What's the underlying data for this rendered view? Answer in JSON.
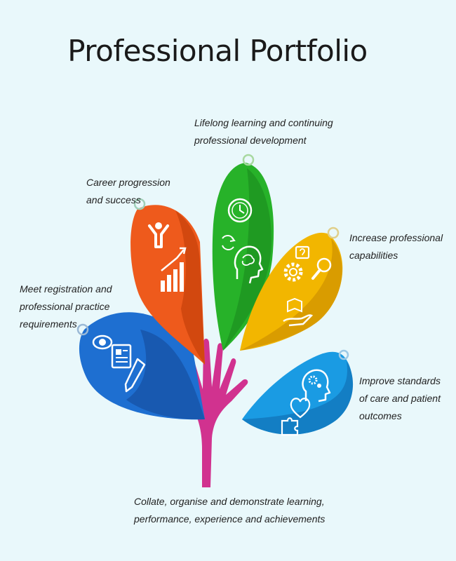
{
  "title": "Professional Portfolio",
  "labels": {
    "lifelong": [
      "Lifelong learning and continuing",
      "professional development"
    ],
    "career": [
      "Career progression",
      "and success"
    ],
    "registration": [
      "Meet registration and",
      "professional practice",
      "requirements"
    ],
    "capabilities": [
      "Increase professional",
      "capabilities"
    ],
    "standards": [
      "Improve standards",
      "of care and patient",
      "outcomes"
    ],
    "collate": [
      "Collate, organise and demonstrate learning,",
      "performance, experience and achievements"
    ]
  },
  "petals": [
    {
      "id": "blue-petal",
      "color": "#1e6fd1",
      "shade": "#1859b0",
      "icons": [
        "eye-icon",
        "document-icon",
        "pencil-icon"
      ]
    },
    {
      "id": "orange-petal",
      "color": "#ee5a1c",
      "shade": "#d2480f",
      "icons": [
        "person-success-icon",
        "growth-chart-icon"
      ]
    },
    {
      "id": "green-petal",
      "color": "#27b229",
      "shade": "#1f9a22",
      "icons": [
        "clock-icon",
        "cycle-arrows-icon",
        "brain-head-icon"
      ]
    },
    {
      "id": "yellow-petal",
      "color": "#f2b600",
      "shade": "#d99c00",
      "icons": [
        "question-bubble-icon",
        "gear-icon",
        "magnifier-icon",
        "book-hand-icon"
      ]
    },
    {
      "id": "lightblue-petal",
      "color": "#1a9be3",
      "shade": "#137ec4",
      "icons": [
        "head-gears-icon",
        "heart-icon",
        "puzzle-icon"
      ]
    }
  ],
  "colors": {
    "background": "#e9f8fb",
    "hand": "#d1328f",
    "text": "#222222"
  }
}
